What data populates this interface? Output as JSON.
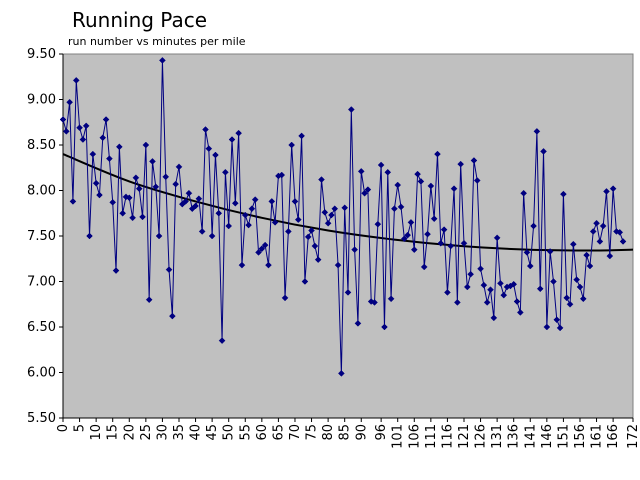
{
  "chart_data": {
    "type": "line",
    "title": "Running Pace",
    "subtitle": "run number vs minutes per mile",
    "xlabel": "",
    "ylabel": "",
    "ylim": [
      5.5,
      9.5
    ],
    "xlim": [
      0,
      172
    ],
    "grid": false,
    "y_ticks": [
      "5.50",
      "6.00",
      "6.50",
      "7.00",
      "7.50",
      "8.00",
      "8.50",
      "9.00",
      "9.50"
    ],
    "x_ticks": [
      "0",
      "5",
      "10",
      "15",
      "20",
      "25",
      "30",
      "35",
      "40",
      "45",
      "50",
      "55",
      "60",
      "65",
      "70",
      "75",
      "80",
      "85",
      "90",
      "96",
      "101",
      "106",
      "111",
      "116",
      "121",
      "126",
      "131",
      "136",
      "141",
      "146",
      "151",
      "156",
      "161",
      "166",
      "172"
    ],
    "colors": {
      "plot_bg": "#c0c0c0",
      "series": "#000080",
      "trend": "#000000"
    },
    "series": [
      {
        "values": [
          8.78,
          8.65,
          8.97,
          7.88,
          9.21,
          8.69,
          8.56,
          8.71,
          7.5,
          8.4,
          8.08,
          7.95,
          8.58,
          8.78,
          8.35,
          7.87,
          7.12,
          8.48,
          7.75,
          7.93,
          7.92,
          7.7,
          8.14,
          8.02,
          7.71,
          8.5,
          6.8,
          8.32,
          8.04,
          7.5,
          9.43,
          8.15,
          7.13,
          6.62,
          8.07,
          8.26,
          7.85,
          7.88,
          7.97,
          7.8,
          7.83,
          7.91,
          7.55,
          8.67,
          8.46,
          7.5,
          8.39,
          7.75,
          6.35,
          8.2,
          7.61,
          8.56,
          7.86,
          8.63,
          7.18,
          7.73,
          7.62,
          7.8,
          7.9,
          7.32,
          7.36,
          7.4,
          7.18,
          7.88,
          7.65,
          8.16,
          8.17,
          6.82,
          7.55,
          8.5,
          7.88,
          7.68,
          8.6,
          7.0,
          7.49,
          7.56,
          7.39,
          7.24,
          8.12,
          7.76,
          7.64,
          7.73,
          7.8,
          7.18,
          5.99,
          7.81,
          6.88,
          8.89,
          7.35,
          6.54,
          8.21,
          7.97,
          8.01,
          6.78,
          6.77,
          7.63,
          8.28,
          6.5,
          8.2,
          6.81,
          7.8,
          8.06,
          7.82,
          7.47,
          7.51,
          7.65,
          7.35,
          8.18,
          8.1,
          7.16,
          7.52,
          8.05,
          7.69,
          8.4,
          7.42,
          7.57,
          6.88,
          7.39,
          8.02,
          6.77,
          8.29,
          7.42,
          6.94,
          7.08,
          8.33,
          8.11,
          7.14,
          6.96,
          6.77,
          6.91,
          6.6,
          7.48,
          6.98,
          6.85,
          6.94,
          6.95,
          6.97,
          6.78,
          6.66,
          7.97,
          7.32,
          7.17,
          7.61,
          8.65,
          6.92,
          8.43,
          6.5,
          7.33,
          7.0,
          6.58,
          6.49,
          7.96,
          6.82,
          6.75,
          7.41,
          7.02,
          6.94,
          6.81,
          7.29,
          7.17,
          7.55,
          7.64,
          7.44,
          7.61,
          7.99,
          7.28,
          8.02,
          7.55,
          7.54,
          7.44
        ]
      }
    ],
    "trendline": {
      "type": "polynomial",
      "x": [
        0,
        20,
        40,
        60,
        80,
        100,
        120,
        140,
        160,
        172
      ],
      "y": [
        8.4,
        8.1,
        7.88,
        7.7,
        7.56,
        7.46,
        7.39,
        7.35,
        7.34,
        7.35
      ]
    }
  }
}
